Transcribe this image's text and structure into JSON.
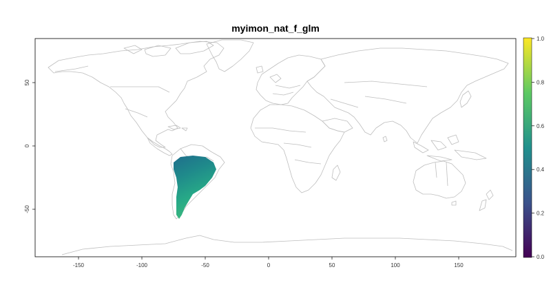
{
  "title": "myimon_nat_f_glm",
  "x_axis": {
    "ticks": [
      -150,
      -100,
      -50,
      0,
      50,
      100,
      150
    ],
    "range": [
      -180,
      180
    ]
  },
  "y_axis": {
    "ticks": [
      50,
      0,
      -50
    ],
    "range": [
      -90,
      90
    ]
  },
  "legend": {
    "ticks": [
      "0.0",
      "0.2",
      "0.4",
      "0.6",
      "0.8",
      "1.0"
    ],
    "range": [
      0,
      1
    ],
    "colormap": [
      "#440154",
      "#3b528b",
      "#21908d",
      "#5dc963",
      "#fde725"
    ],
    "placement": "right"
  },
  "colors": {
    "outline": "#bdbdbd",
    "axis": "#000000"
  },
  "raster": {
    "region": "South America (east of Andes)",
    "value_range_estimate": [
      0.35,
      0.6
    ]
  }
}
